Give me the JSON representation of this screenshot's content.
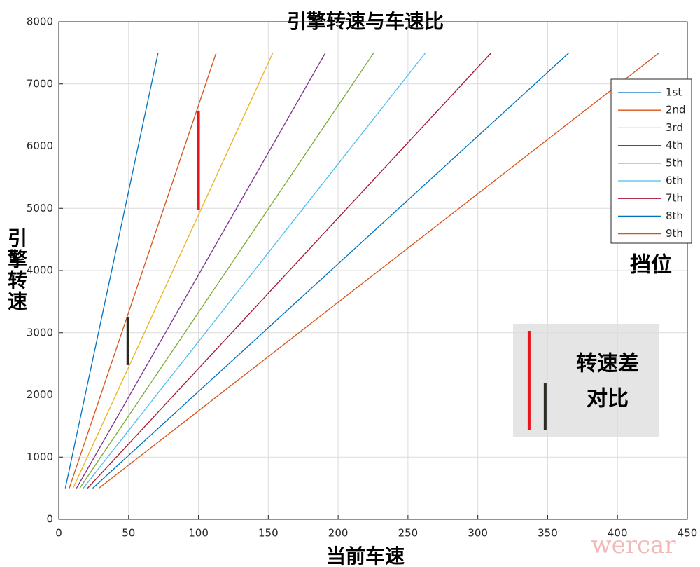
{
  "chart_data": {
    "type": "line",
    "title": "引擎转速与车速比",
    "xlabel": "当前车速",
    "ylabel": "引擎转速",
    "xlim": [
      0,
      450
    ],
    "xticks": [
      0,
      50,
      100,
      150,
      200,
      250,
      300,
      350,
      400,
      450
    ],
    "ylim": [
      0,
      8000
    ],
    "yticks": [
      0,
      1000,
      2000,
      3000,
      4000,
      5000,
      6000,
      7000,
      8000
    ],
    "grid": true,
    "legend": "upper right",
    "series": [
      {
        "name": "1st",
        "color": "#0072BD",
        "x": [
          4.7,
          71.1
        ],
        "values": [
          500,
          7500
        ]
      },
      {
        "name": "2nd",
        "color": "#D95319",
        "x": [
          7.5,
          112.7
        ],
        "values": [
          500,
          7500
        ]
      },
      {
        "name": "3rd",
        "color": "#EDB120",
        "x": [
          10.2,
          153.3
        ],
        "values": [
          500,
          7500
        ]
      },
      {
        "name": "4th",
        "color": "#7E2F8E",
        "x": [
          12.7,
          190.9
        ],
        "values": [
          500,
          7500
        ]
      },
      {
        "name": "5th",
        "color": "#77AC30",
        "x": [
          15.0,
          225.5
        ],
        "values": [
          500,
          7500
        ]
      },
      {
        "name": "6th",
        "color": "#4DBEEE",
        "x": [
          17.5,
          262.5
        ],
        "values": [
          500,
          7500
        ]
      },
      {
        "name": "7th",
        "color": "#A2142F",
        "x": [
          20.6,
          309.6
        ],
        "values": [
          500,
          7500
        ]
      },
      {
        "name": "8th",
        "color": "#0072BD",
        "x": [
          24.3,
          365.2
        ],
        "values": [
          500,
          7500
        ]
      },
      {
        "name": "9th",
        "color": "#D95319",
        "x": [
          28.7,
          429.8
        ],
        "values": [
          500,
          7500
        ]
      }
    ],
    "markers": [
      {
        "color": "#e8141b",
        "x": 100,
        "y": [
          4970,
          6570
        ]
      },
      {
        "color": "#2b2b22",
        "x": 49.5,
        "y": [
          2480,
          3250
        ]
      },
      {
        "color": "#e8141b",
        "x": 336.7,
        "y": [
          1442,
          3031
        ]
      },
      {
        "color": "#2b2b22",
        "x": 348.2,
        "y": [
          1442,
          2197
        ]
      }
    ],
    "annotations": [
      "挡位",
      "转速差",
      "对比"
    ],
    "watermark": "wercar"
  }
}
